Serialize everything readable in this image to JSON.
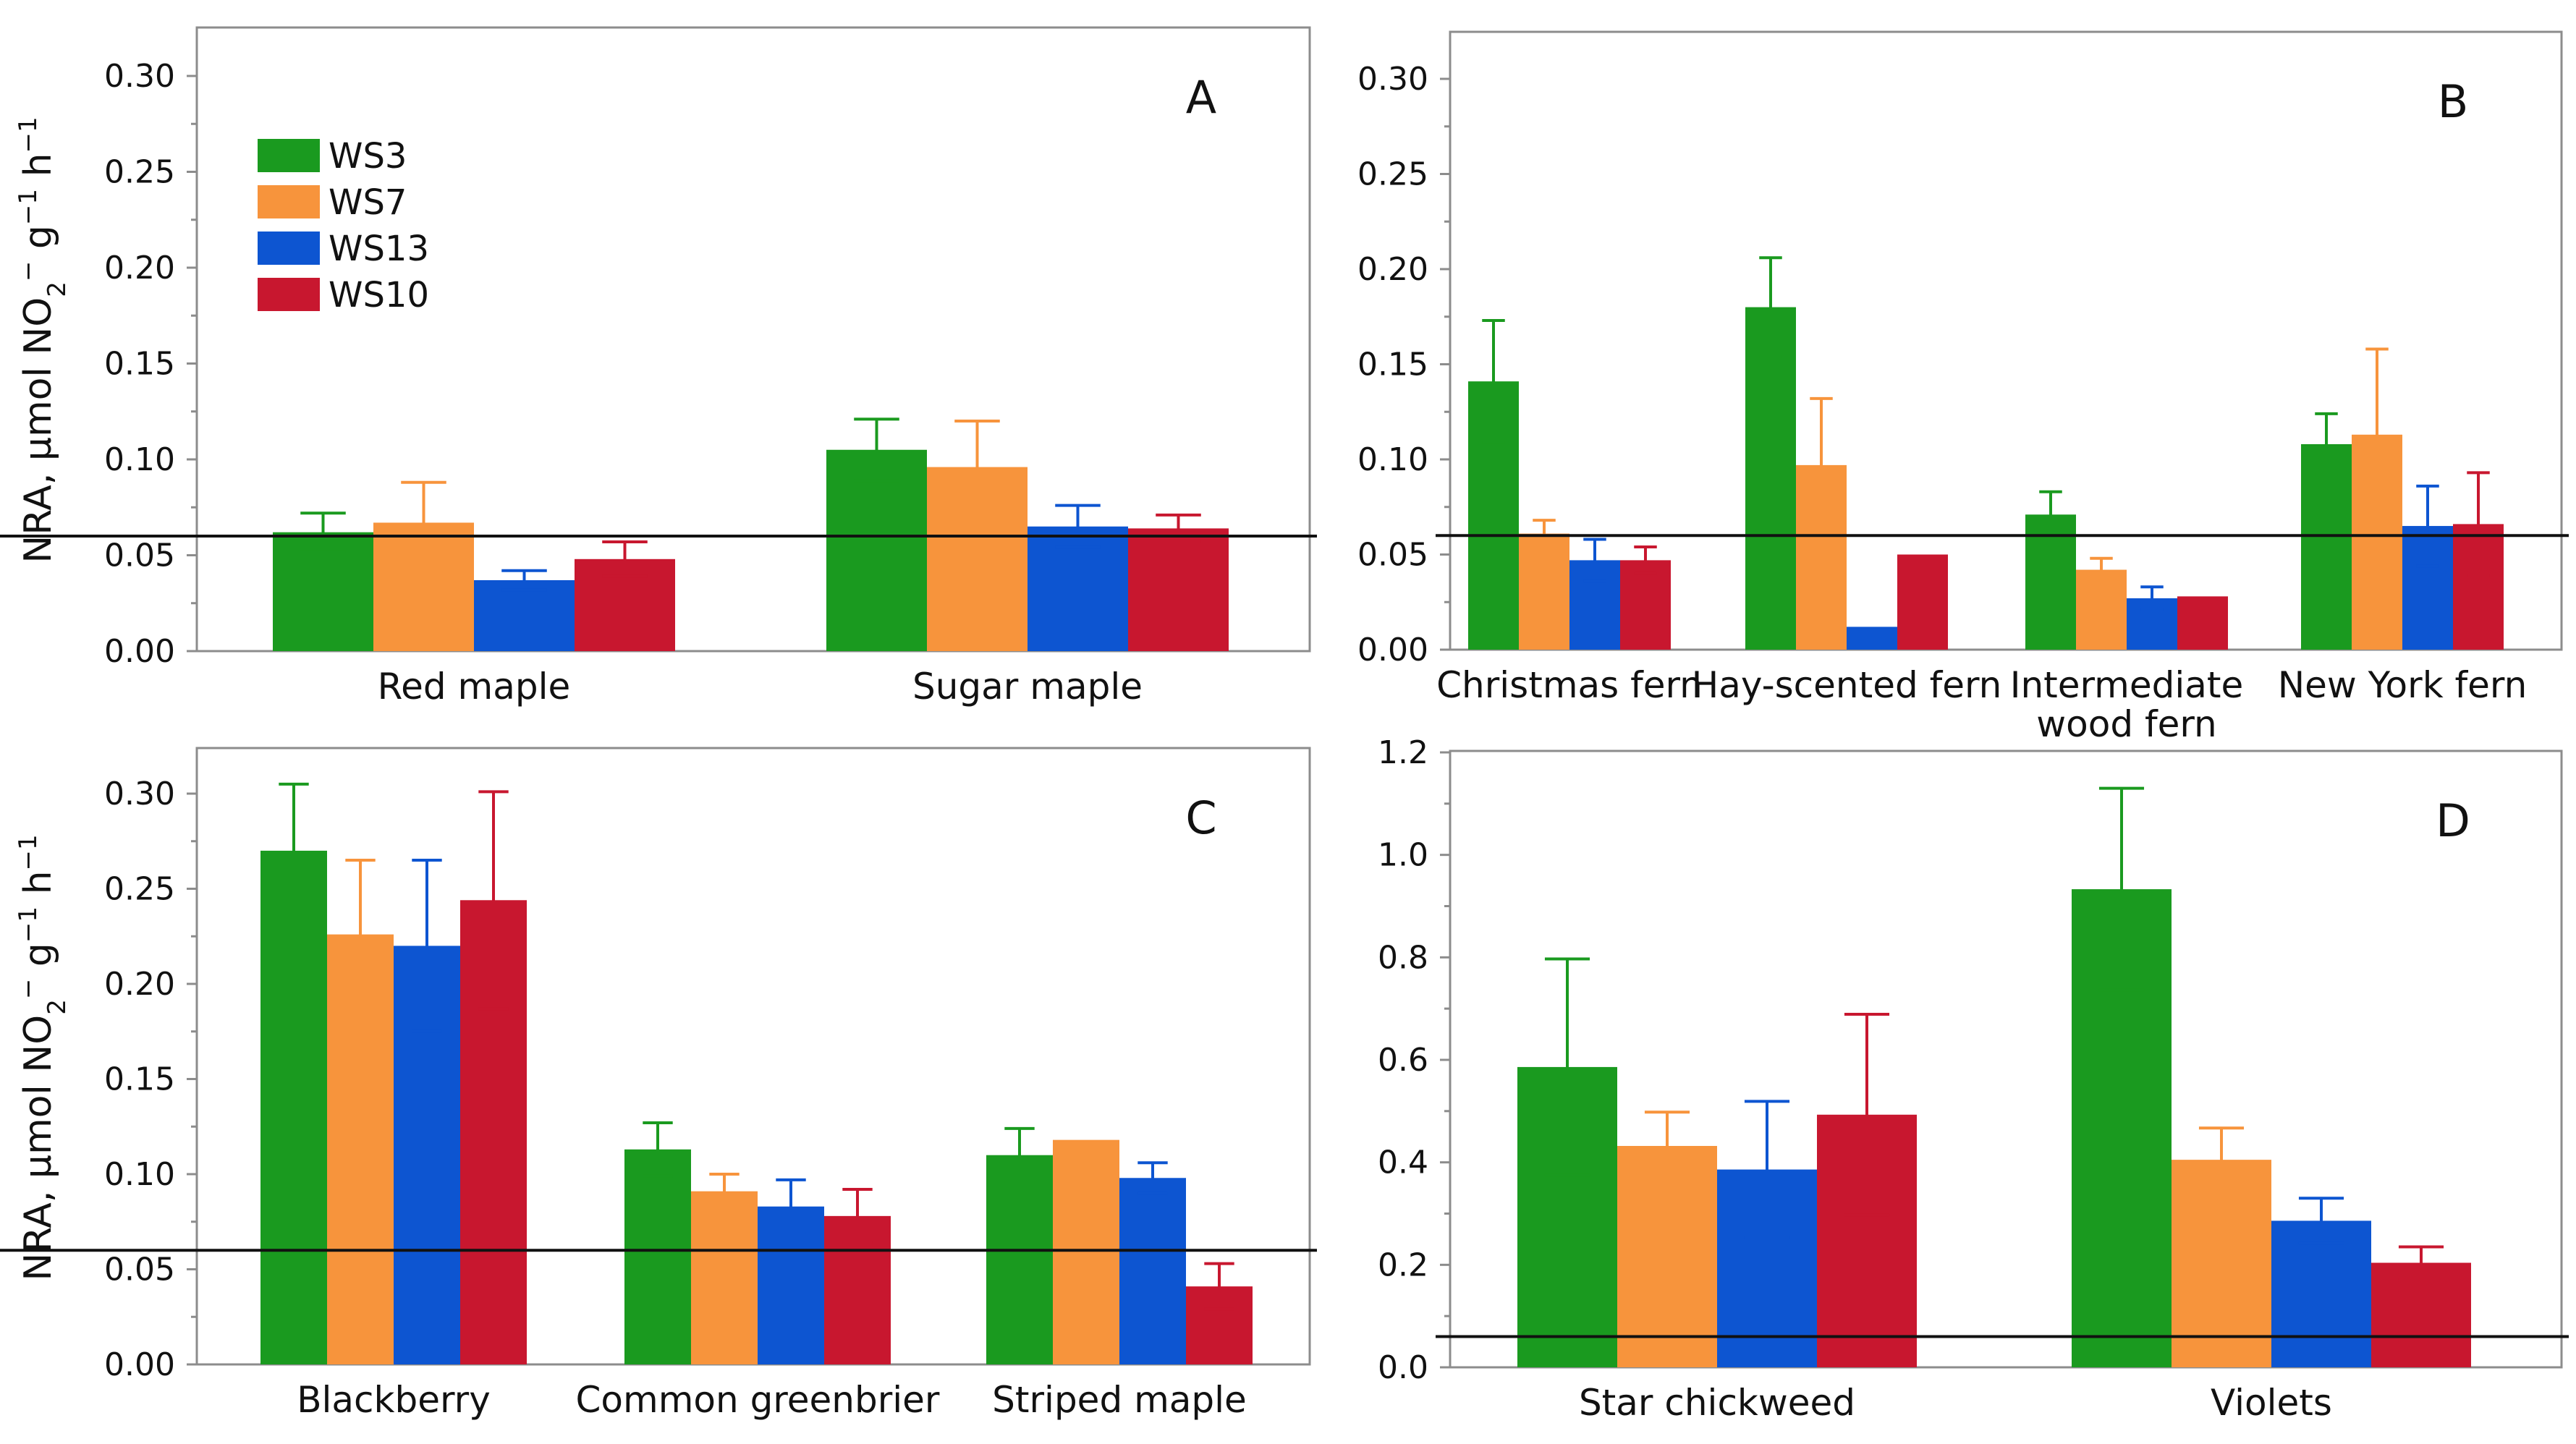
{
  "figure": {
    "ylabel_prefix": "NRA, μmol NO",
    "ylabel_sub": "2",
    "ylabel_sup1": "−",
    "ylabel_g": " g",
    "ylabel_sup2": "−1",
    "ylabel_h": " h",
    "ylabel_sup3": "−1"
  },
  "legend": {
    "series": [
      {
        "name": "WS3",
        "color": "#1a9a1f"
      },
      {
        "name": "WS7",
        "color": "#f7943c"
      },
      {
        "name": "WS13",
        "color": "#0d55d1"
      },
      {
        "name": "WS10",
        "color": "#c8172f"
      }
    ]
  },
  "chart_data": [
    {
      "type": "bar",
      "panel": "A",
      "title": "A",
      "ylabel": "NRA, μmol NO2− g−1 h−1",
      "ylim": [
        0,
        0.32
      ],
      "yticks": [
        "0.00",
        "0.05",
        "0.10",
        "0.15",
        "0.20",
        "0.25",
        "0.30"
      ],
      "ytick_values": [
        0,
        0.05,
        0.1,
        0.15,
        0.2,
        0.25,
        0.3
      ],
      "reference_line": 0.06,
      "categories": [
        [
          "Red maple"
        ],
        [
          "Sugar maple"
        ]
      ],
      "series": [
        {
          "name": "WS3",
          "values": [
            0.062,
            0.105
          ],
          "err": [
            0.01,
            0.016
          ]
        },
        {
          "name": "WS7",
          "values": [
            0.067,
            0.096
          ],
          "err": [
            0.021,
            0.024
          ]
        },
        {
          "name": "WS13",
          "values": [
            0.037,
            0.065
          ],
          "err": [
            0.005,
            0.011
          ]
        },
        {
          "name": "WS10",
          "values": [
            0.048,
            0.064
          ],
          "err": [
            0.009,
            0.007
          ]
        }
      ]
    },
    {
      "type": "bar",
      "panel": "B",
      "title": "B",
      "ylim": [
        0,
        0.32
      ],
      "yticks": [
        "0.00",
        "0.05",
        "0.10",
        "0.15",
        "0.20",
        "0.25",
        "0.30"
      ],
      "ytick_values": [
        0,
        0.05,
        0.1,
        0.15,
        0.2,
        0.25,
        0.3
      ],
      "reference_line": 0.06,
      "categories": [
        [
          "Christmas fern"
        ],
        [
          "Hay-scented fern"
        ],
        [
          "Intermediate",
          "wood fern"
        ],
        [
          "New York fern"
        ]
      ],
      "series": [
        {
          "name": "WS3",
          "values": [
            0.141,
            0.18,
            0.071,
            0.108
          ],
          "err": [
            0.032,
            0.026,
            0.012,
            0.016
          ]
        },
        {
          "name": "WS7",
          "values": [
            0.061,
            0.097,
            0.042,
            0.113
          ],
          "err": [
            0.007,
            0.035,
            0.006,
            0.045
          ]
        },
        {
          "name": "WS13",
          "values": [
            0.047,
            0.012,
            0.027,
            0.065
          ],
          "err": [
            0.011,
            0,
            0.006,
            0.021
          ]
        },
        {
          "name": "WS10",
          "values": [
            0.047,
            0.05,
            0.028,
            0.066
          ],
          "err": [
            0.007,
            0,
            0,
            0.027
          ]
        }
      ]
    },
    {
      "type": "bar",
      "panel": "C",
      "title": "C",
      "ylabel": "NRA, μmol NO2− g−1 h−1",
      "ylim": [
        0,
        0.32
      ],
      "yticks": [
        "0.00",
        "0.05",
        "0.10",
        "0.15",
        "0.20",
        "0.25",
        "0.30"
      ],
      "ytick_values": [
        0,
        0.05,
        0.1,
        0.15,
        0.2,
        0.25,
        0.3
      ],
      "reference_line": 0.06,
      "categories": [
        [
          "Blackberry"
        ],
        [
          "Common greenbrier"
        ],
        [
          "Striped maple"
        ]
      ],
      "series": [
        {
          "name": "WS3",
          "values": [
            0.27,
            0.113,
            0.11
          ],
          "err": [
            0.035,
            0.014,
            0.014
          ]
        },
        {
          "name": "WS7",
          "values": [
            0.226,
            0.091,
            0.118
          ],
          "err": [
            0.039,
            0.009,
            0
          ]
        },
        {
          "name": "WS13",
          "values": [
            0.22,
            0.083,
            0.098
          ],
          "err": [
            0.045,
            0.014,
            0.008
          ]
        },
        {
          "name": "WS10",
          "values": [
            0.244,
            0.078,
            0.041
          ],
          "err": [
            0.057,
            0.014,
            0.012
          ]
        }
      ]
    },
    {
      "type": "bar",
      "panel": "D",
      "title": "D",
      "ylim": [
        0,
        1.2
      ],
      "yticks": [
        "0.0",
        "0.2",
        "0.4",
        "0.6",
        "0.8",
        "1.0",
        "1.2"
      ],
      "ytick_values": [
        0,
        0.2,
        0.4,
        0.6,
        0.8,
        1.0,
        1.2
      ],
      "reference_line": 0.06,
      "categories": [
        [
          "Star chickweed"
        ],
        [
          "Violets"
        ]
      ],
      "series": [
        {
          "name": "WS3",
          "values": [
            0.586,
            0.933
          ],
          "err": [
            0.211,
            0.197
          ]
        },
        {
          "name": "WS7",
          "values": [
            0.432,
            0.405
          ],
          "err": [
            0.066,
            0.062
          ]
        },
        {
          "name": "WS13",
          "values": [
            0.386,
            0.286
          ],
          "err": [
            0.133,
            0.044
          ]
        },
        {
          "name": "WS10",
          "values": [
            0.493,
            0.204
          ],
          "err": [
            0.196,
            0.031
          ]
        }
      ]
    }
  ]
}
